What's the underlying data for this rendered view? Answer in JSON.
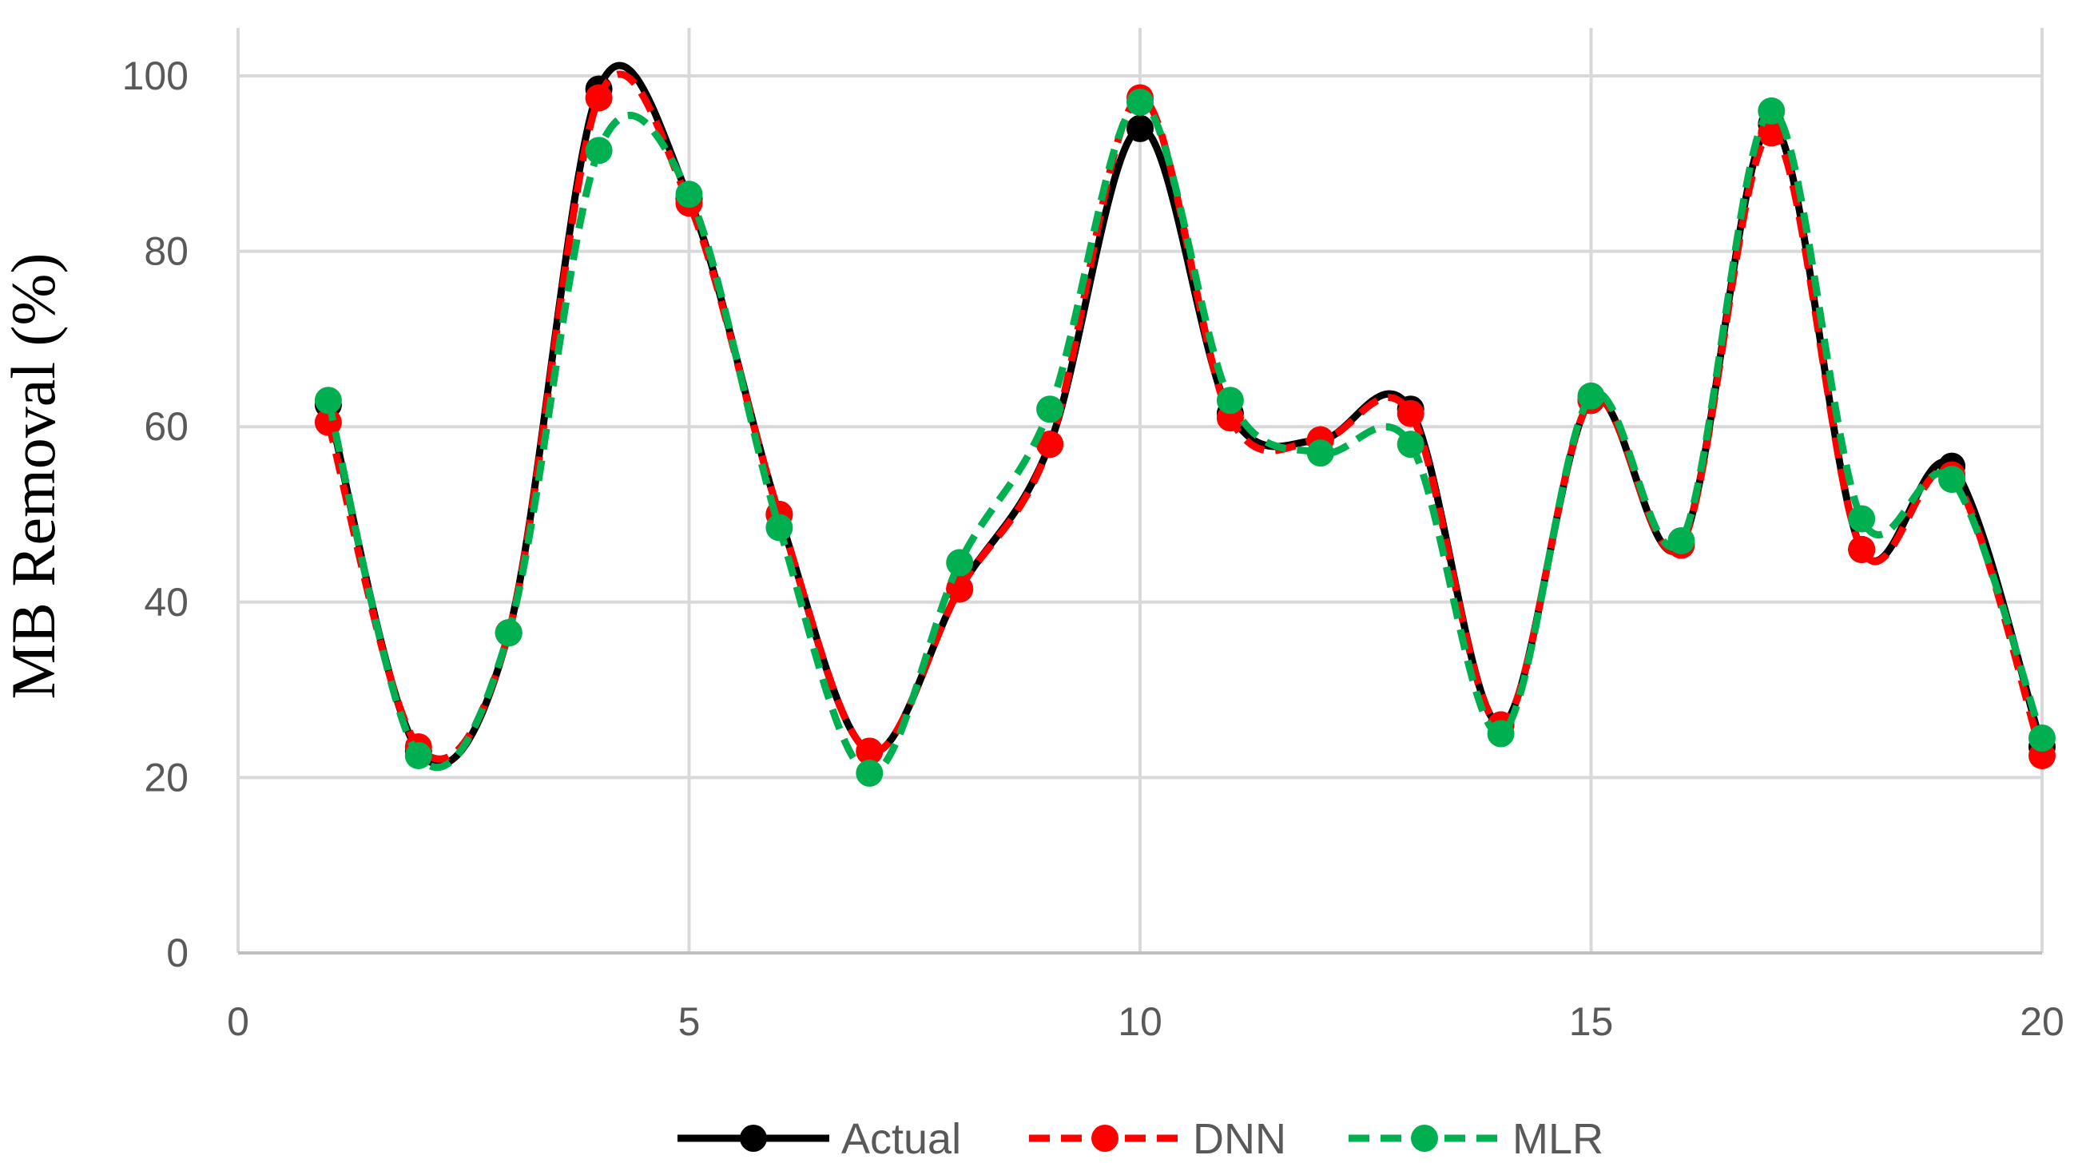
{
  "chart_data": {
    "type": "line",
    "title": "",
    "xlabel": "",
    "ylabel": "MB Removal (%)",
    "xlim": [
      0,
      20
    ],
    "ylim": [
      0,
      100
    ],
    "x_ticks": [
      "0",
      "5",
      "10",
      "15",
      "20"
    ],
    "y_ticks": [
      "0",
      "20",
      "40",
      "60",
      "80",
      "100"
    ],
    "grid": true,
    "legend_position": "bottom",
    "x": [
      1,
      2,
      3,
      4,
      5,
      6,
      7,
      8,
      9,
      10,
      11,
      12,
      13,
      14,
      15,
      16,
      17,
      18,
      19,
      20
    ],
    "series": [
      {
        "name": "Actual",
        "color": "#000000",
        "line_style": "solid",
        "values": [
          62.5,
          23.0,
          36.5,
          98.5,
          86.0,
          50.0,
          23.0,
          41.5,
          58.0,
          94.0,
          61.5,
          58.5,
          62.0,
          26.0,
          63.0,
          46.5,
          94.5,
          46.0,
          55.5,
          23.5
        ]
      },
      {
        "name": "DNN",
        "color": "#ff0000",
        "line_style": "dashed",
        "values": [
          60.5,
          23.5,
          36.5,
          97.5,
          85.5,
          50.0,
          23.0,
          41.5,
          58.0,
          97.5,
          61.0,
          58.5,
          61.5,
          26.0,
          63.0,
          46.5,
          93.5,
          46.0,
          54.5,
          22.5
        ]
      },
      {
        "name": "MLR",
        "color": "#00b050",
        "line_style": "dashed",
        "values": [
          63.0,
          22.5,
          36.5,
          91.5,
          86.5,
          48.5,
          20.5,
          44.5,
          62.0,
          97.0,
          63.0,
          57.0,
          58.0,
          25.0,
          63.5,
          47.0,
          96.0,
          49.5,
          54.0,
          24.5
        ]
      }
    ]
  }
}
